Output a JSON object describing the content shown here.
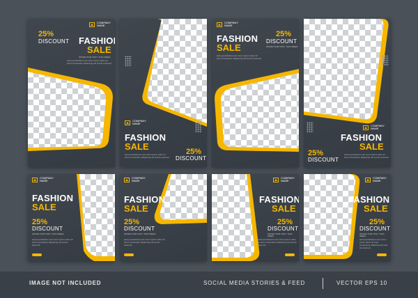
{
  "brand": {
    "company": "COMPANY",
    "name": "NAME"
  },
  "promo": {
    "title": "FASHION",
    "sale": "SALE",
    "percent": "25%",
    "discount": "DISCOUNT",
    "small_caption": "OFFER FOR ONLY THIS WEEK",
    "body": "www.yoursitehere.com lorem ipsum dolor sit amet consectetur adipiscing elit sed do eiusmod"
  },
  "footer": {
    "left": "IMAGE NOT INCLUDED",
    "middle": "SOCIAL MEDIA STORIES & FEED",
    "right": "VECTOR EPS 10"
  },
  "colors": {
    "accent": "#f5b700",
    "card": "#3a4047",
    "page": "#4a5159"
  }
}
